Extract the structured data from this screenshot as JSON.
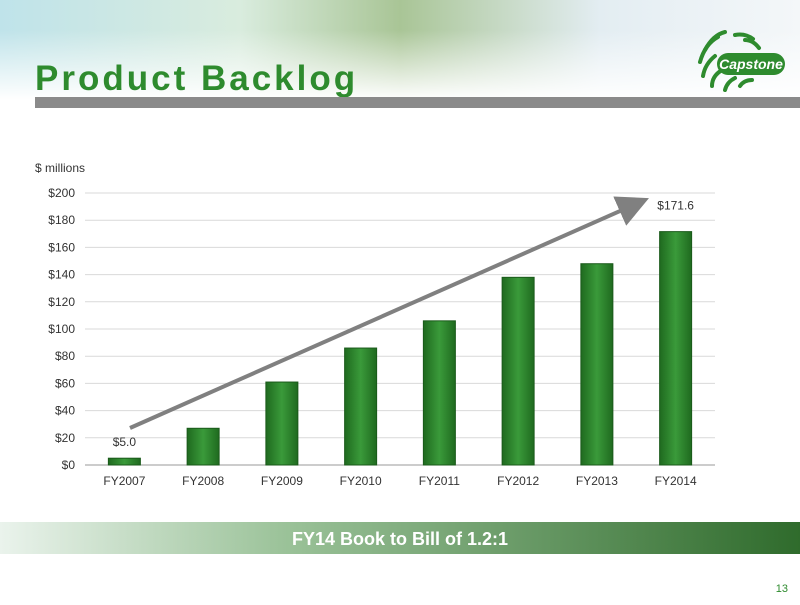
{
  "header": {
    "title": "Product Backlog",
    "logo": "Capstone"
  },
  "chart_data": {
    "type": "bar",
    "y_label": "$ millions",
    "categories": [
      "FY2007",
      "FY2008",
      "FY2009",
      "FY2010",
      "FY2011",
      "FY2012",
      "FY2013",
      "FY2014"
    ],
    "values": [
      5.0,
      27,
      61,
      86,
      106,
      138,
      148,
      171.6
    ],
    "value_labels": [
      "$5.0",
      null,
      null,
      null,
      null,
      null,
      null,
      "$171.6"
    ],
    "color": "#2e8b2e",
    "ylim": [
      0,
      200
    ],
    "yticks": [
      {
        "value": 0,
        "label": "$0"
      },
      {
        "value": 20,
        "label": "$20"
      },
      {
        "value": 40,
        "label": "$40"
      },
      {
        "value": 60,
        "label": "$60"
      },
      {
        "value": 80,
        "label": "$80"
      },
      {
        "value": 100,
        "label": "$100"
      },
      {
        "value": 120,
        "label": "$120"
      },
      {
        "value": 140,
        "label": "$140"
      },
      {
        "value": 160,
        "label": "$160"
      },
      {
        "value": 180,
        "label": "$180"
      },
      {
        "value": 200,
        "label": "$200"
      }
    ],
    "grid": true
  },
  "banner": "FY14 Book to Bill of 1.2:1",
  "page_number": "13"
}
